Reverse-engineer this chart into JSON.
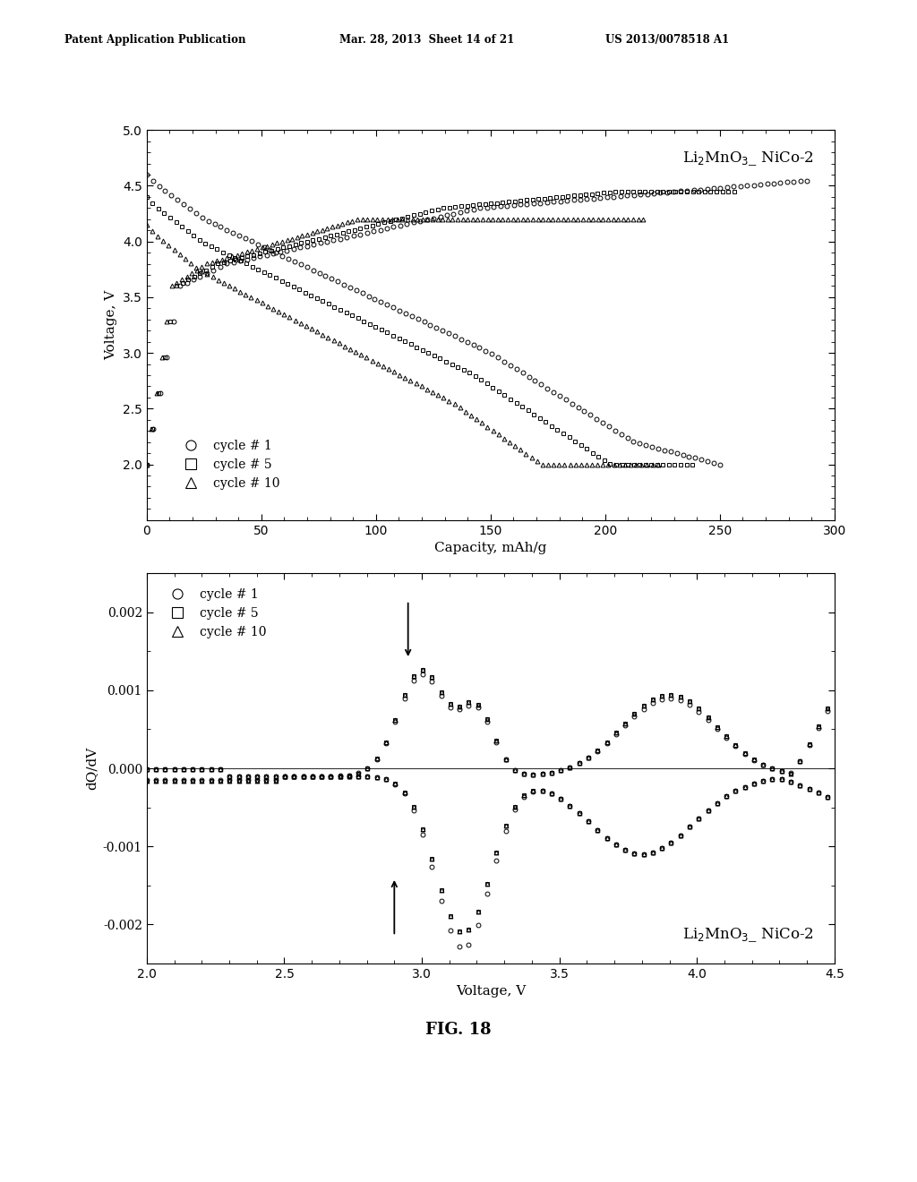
{
  "header_left": "Patent Application Publication",
  "header_mid": "Mar. 28, 2013  Sheet 14 of 21",
  "header_right": "US 2013/0078518 A1",
  "figure_label": "FIG. 18",
  "plot1": {
    "xlabel": "Capacity, mAh/g",
    "ylabel": "Voltage, V",
    "xlim": [
      0,
      300
    ],
    "ylim": [
      1.5,
      5.0
    ],
    "xticks": [
      0,
      50,
      100,
      150,
      200,
      250,
      300
    ],
    "yticks": [
      2.0,
      2.5,
      3.0,
      3.5,
      4.0,
      4.5,
      5.0
    ],
    "annotation": "Li₂MnO₃_ NiCo-2",
    "legend_entries": [
      "cycle # 1",
      "cycle # 5",
      "cycle # 10"
    ]
  },
  "plot2": {
    "xlabel": "Voltage, V",
    "ylabel": "dQ/dV",
    "xlim": [
      2.0,
      4.5
    ],
    "ylim": [
      -0.0025,
      0.0025
    ],
    "xticks": [
      2.0,
      2.5,
      3.0,
      3.5,
      4.0,
      4.5
    ],
    "yticks": [
      -0.002,
      -0.001,
      0.0,
      0.001,
      0.002
    ],
    "annotation": "Li₂MnO₃_ NiCo-2",
    "legend_entries": [
      "cycle # 1",
      "cycle # 5",
      "cycle # 10"
    ]
  },
  "bg_color": "#ffffff",
  "line_color": "#1a1a1a"
}
